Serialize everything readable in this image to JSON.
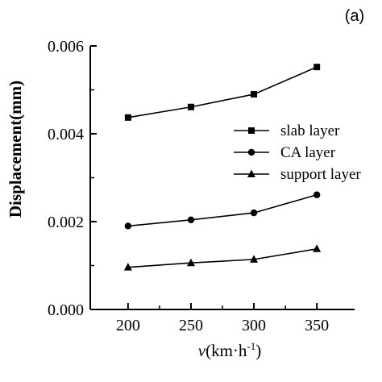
{
  "panel_label": "(a)",
  "chart_data": {
    "type": "line",
    "x": [
      200,
      250,
      300,
      350
    ],
    "xlim": [
      170,
      380
    ],
    "ylim": [
      0,
      0.006
    ],
    "xticks": [
      "200",
      "250",
      "300",
      "350"
    ],
    "yticks": [
      "0.000",
      "0.002",
      "0.004",
      "0.006"
    ],
    "ytick_values": [
      0,
      0.002,
      0.004,
      0.006
    ],
    "xlabel_italic": "v",
    "xlabel_rest": "(km·h",
    "xlabel_sup": "-1",
    "xlabel_close": ")",
    "ylabel": "Displacement(mm)",
    "grid": false,
    "legend_position": "right",
    "series": [
      {
        "name": "slab layer",
        "marker": "square",
        "values": [
          0.00437,
          0.00461,
          0.0049,
          0.00552
        ]
      },
      {
        "name": "CA layer",
        "marker": "circle",
        "values": [
          0.0019,
          0.00204,
          0.0022,
          0.00261
        ]
      },
      {
        "name": "support layer",
        "marker": "triangle",
        "values": [
          0.00096,
          0.00106,
          0.00114,
          0.00138
        ]
      }
    ],
    "colors": {
      "line": "#000000",
      "marker": "#000000"
    }
  }
}
